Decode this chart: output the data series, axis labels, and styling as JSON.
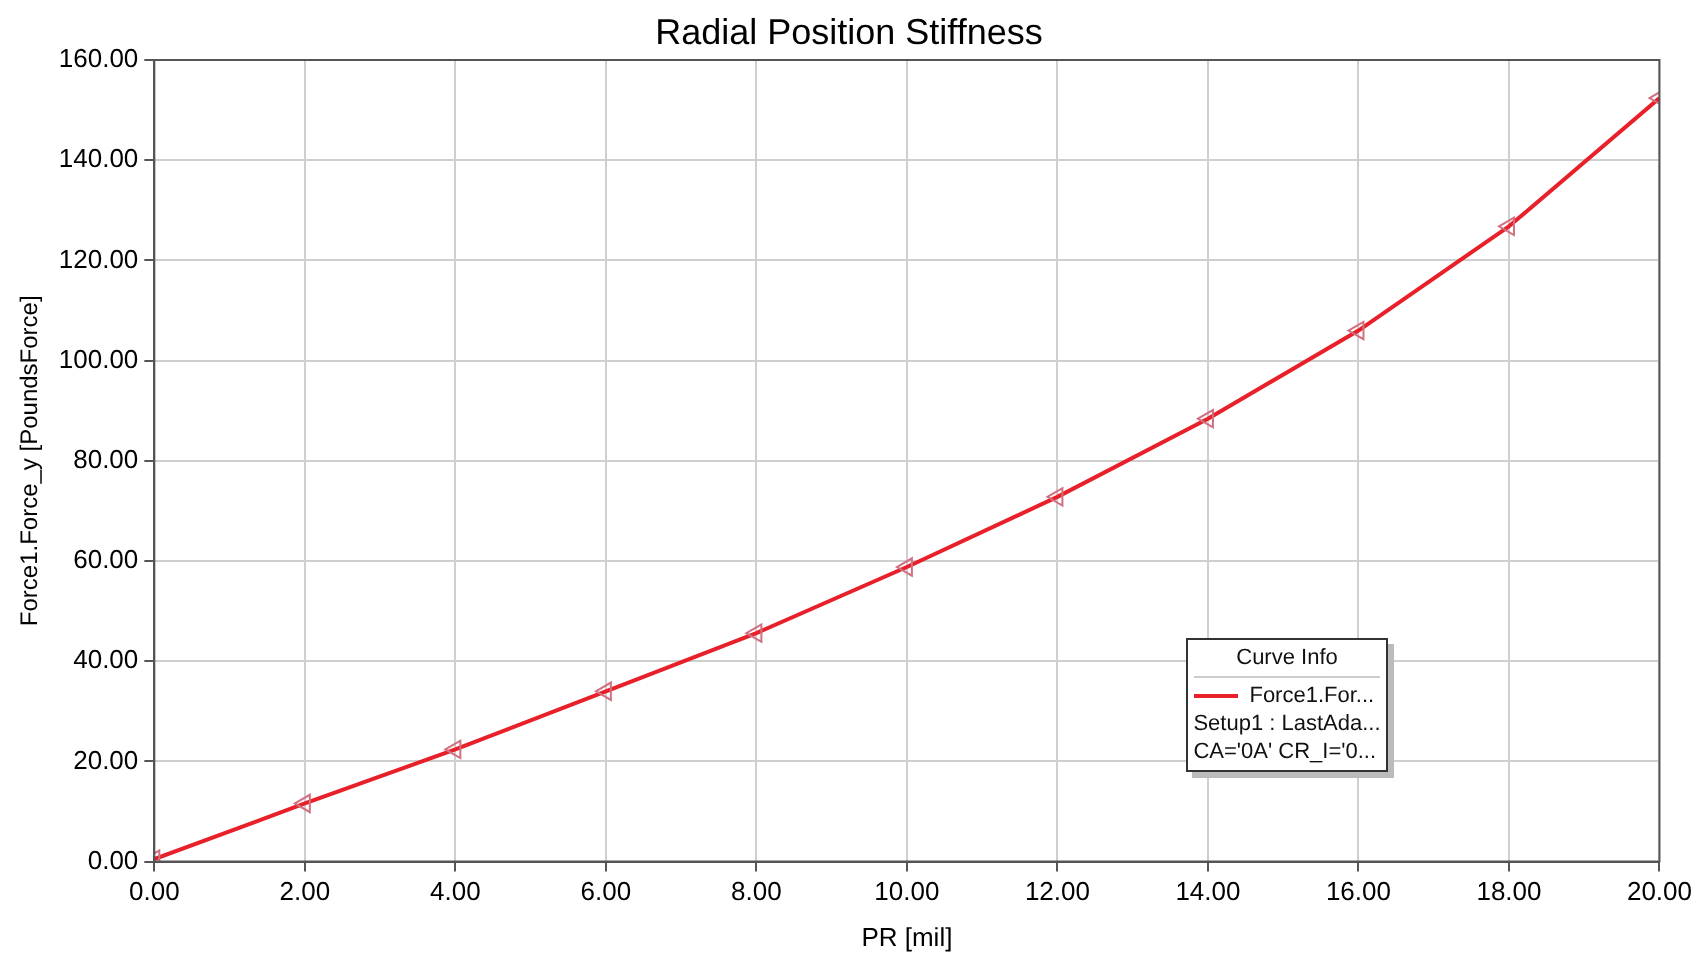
{
  "chart_data": {
    "type": "line",
    "title": "Radial Position Stiffness",
    "xlabel": "PR [mil]",
    "ylabel": "Force1.Force_y [PoundsForce]",
    "legend_title": "Curve Info",
    "x": [
      0,
      2,
      4,
      6,
      8,
      10,
      12,
      14,
      16,
      18,
      20
    ],
    "series": [
      {
        "name": "Force1.For...",
        "color": "#e8202a",
        "values": [
          0.5,
          11.6,
          22.4,
          34,
          45.6,
          58.8,
          72.8,
          88.4,
          106,
          126.8,
          152.4
        ]
      }
    ],
    "xlim": [
      0,
      20
    ],
    "xticks": [
      {
        "value": 0,
        "label": "0.00"
      },
      {
        "value": 2,
        "label": "2.00"
      },
      {
        "value": 4,
        "label": "4.00"
      },
      {
        "value": 6,
        "label": "6.00"
      },
      {
        "value": 8,
        "label": "8.00"
      },
      {
        "value": 10,
        "label": "10.00"
      },
      {
        "value": 12,
        "label": "12.00"
      },
      {
        "value": 14,
        "label": "14.00"
      },
      {
        "value": 16,
        "label": "16.00"
      },
      {
        "value": 18,
        "label": "18.00"
      },
      {
        "value": 20,
        "label": "20.00"
      }
    ],
    "ylim": [
      0,
      160
    ],
    "yticks": [
      {
        "value": 0,
        "label": "0.00"
      },
      {
        "value": 20,
        "label": "20.00"
      },
      {
        "value": 40,
        "label": "40.00"
      },
      {
        "value": 60,
        "label": "60.00"
      },
      {
        "value": 80,
        "label": "80.00"
      },
      {
        "value": 100,
        "label": "100.00"
      },
      {
        "value": 120,
        "label": "120.00"
      },
      {
        "value": 140,
        "label": "140.00"
      },
      {
        "value": 160,
        "label": "160.00"
      }
    ],
    "annotations": [
      "Setup1 : LastAda...",
      "CA='0A' CR_I='0..."
    ],
    "grid": true,
    "legend": "bottom right",
    "marker": "triangle",
    "line_style": "solid"
  }
}
